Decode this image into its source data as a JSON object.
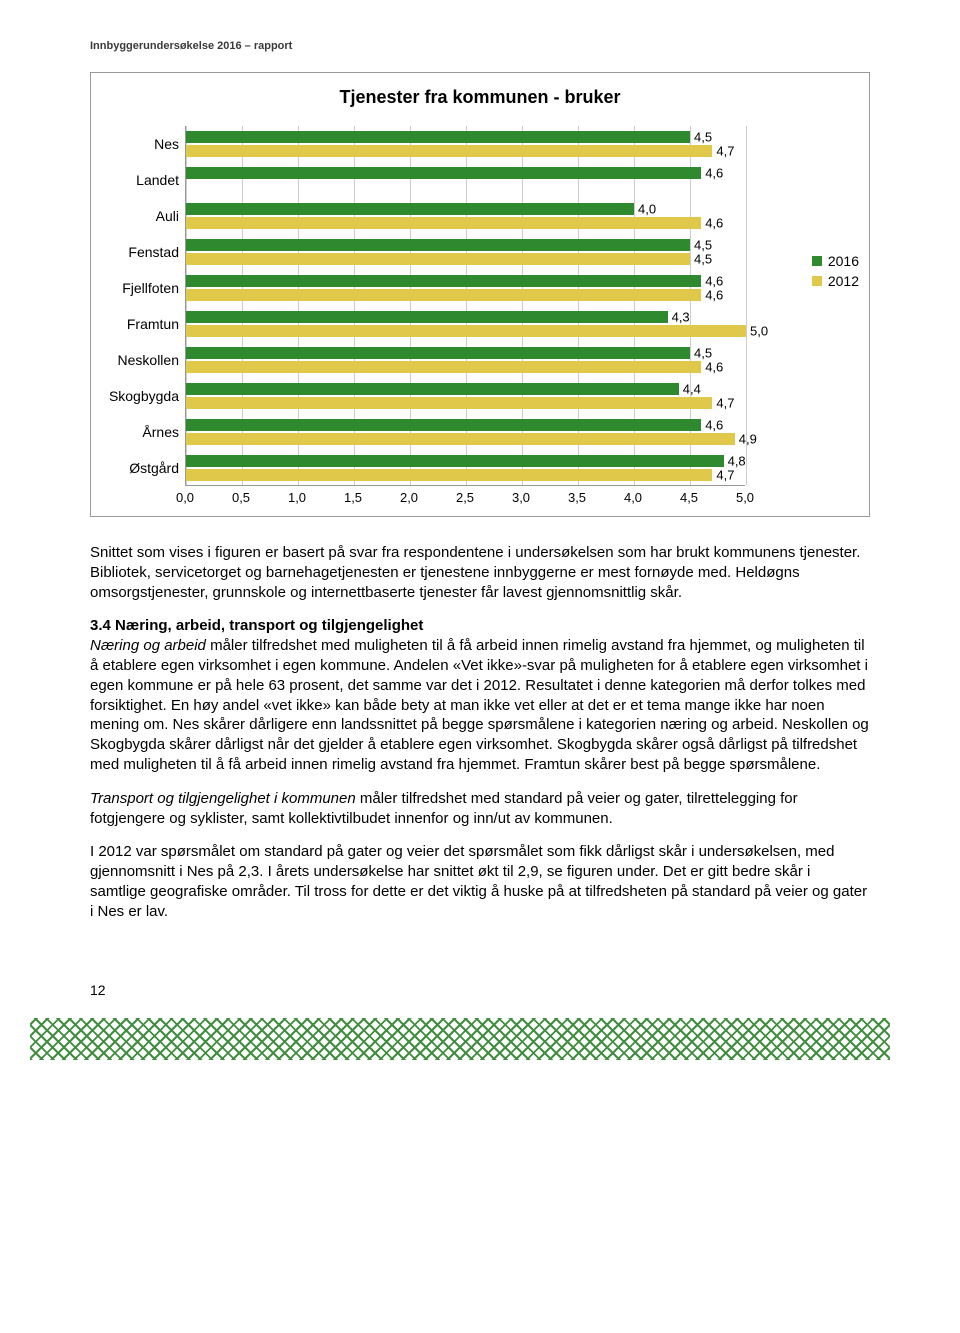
{
  "header": "Innbyggerundersøkelse 2016 – rapport",
  "chart": {
    "type": "bar",
    "title": "Tjenester fra kommunen - bruker",
    "categories": [
      "Nes",
      "Landet",
      "Auli",
      "Fenstad",
      "Fjellfoten",
      "Framtun",
      "Neskollen",
      "Skogbygda",
      "Årnes",
      "Østgård"
    ],
    "series": [
      {
        "name": "2016",
        "color": "#2f8a2f",
        "values": [
          4.5,
          4.6,
          4.0,
          4.5,
          4.6,
          4.3,
          4.5,
          4.4,
          4.6,
          4.8
        ]
      },
      {
        "name": "2012",
        "color": "#e0c84a",
        "values": [
          4.7,
          null,
          4.6,
          4.5,
          4.6,
          5.0,
          4.6,
          4.7,
          4.9,
          4.7
        ]
      }
    ],
    "xmin": 0.0,
    "xmax": 5.0,
    "xtick_step": 0.5,
    "xticks": [
      "0,0",
      "0,5",
      "1,0",
      "1,5",
      "2,0",
      "2,5",
      "3,0",
      "3,5",
      "4,0",
      "4,5",
      "5,0"
    ],
    "value_labels": [
      [
        "4,5",
        "4,7"
      ],
      [
        "4,6",
        null
      ],
      [
        "4,0",
        "4,6"
      ],
      [
        "4,5",
        "4,5"
      ],
      [
        "4,6",
        "4,6"
      ],
      [
        "4,3",
        "5,0"
      ],
      [
        "4,5",
        "4,6"
      ],
      [
        "4,4",
        "4,7"
      ],
      [
        "4,6",
        "4,9"
      ],
      [
        "4,8",
        "4,7"
      ]
    ],
    "grid_color": "#cccccc",
    "border_color": "#999999",
    "label_fontsize": 14,
    "title_fontsize": 18,
    "legend": [
      "2016",
      "2012"
    ]
  },
  "text": {
    "p1": "Snittet som vises i figuren er basert på svar fra respondentene i undersøkelsen som har brukt kommunens tjenester. Bibliotek, servicetorget og barnehagetjenesten er tjenestene innbyggerne er mest fornøyde med. Heldøgns omsorgstjenester, grunnskole og internettbaserte tjenester får lavest gjennomsnittlig skår.",
    "section_title": "3.4 Næring, arbeid, transport og tilgjengelighet",
    "p2_a": "Næring og arbeid",
    "p2_b": " måler tilfredshet med muligheten til å få arbeid innen rimelig avstand fra hjemmet, og muligheten til å etablere egen virksomhet i egen kommune. Andelen «Vet ikke»-svar på muligheten for å etablere egen virksomhet i egen kommune er på hele 63 prosent, det samme var det i 2012. Resultatet i denne kategorien må derfor tolkes med forsiktighet. En høy andel «vet ikke» kan både bety at man ikke vet eller at det er et tema mange ikke har noen mening om. Nes skårer dårligere enn landssnittet på begge spørsmålene i kategorien næring og arbeid. Neskollen og Skogbygda skårer dårligst når det gjelder å etablere egen virksomhet. Skogbygda skårer også dårligst på tilfredshet med muligheten til å få arbeid innen rimelig avstand fra hjemmet. Framtun skårer best på begge spørsmålene.",
    "p3_a": "Transport og tilgjengelighet i kommunen",
    "p3_b": " måler tilfredshet med standard på veier og gater, tilrettelegging for fotgjengere og syklister, samt kollektivtilbudet innenfor og inn/ut av kommunen.",
    "p4": "I 2012 var spørsmålet om standard på gater og veier det spørsmålet som fikk dårligst skår i undersøkelsen, med gjennomsnitt i Nes på 2,3. I årets undersøkelse har snittet økt til 2,9, se figuren under. Det er gitt bedre skår i samtlige geografiske områder. Til tross for dette er det viktig å huske på at tilfredsheten på standard på veier og gater i Nes er lav."
  },
  "page_number": "12"
}
